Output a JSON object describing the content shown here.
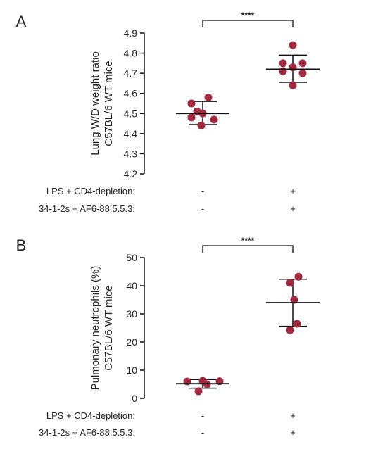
{
  "chart_data": [
    {
      "type": "scatter",
      "panel": "A",
      "ylabel": [
        "Lung W/D weight ratio",
        "C57BL/6 WT mice"
      ],
      "ylim": [
        4.2,
        4.9
      ],
      "yticks": [
        "4.2",
        "4.3",
        "4.4",
        "4.5",
        "4.6",
        "4.7",
        "4.8",
        "4.9"
      ],
      "groups": [
        {
          "condition_markers": [
            "-",
            "-"
          ],
          "points": [
            4.58,
            4.55,
            4.51,
            4.5,
            4.48,
            4.47,
            4.44
          ],
          "mean": 4.5,
          "sd_upper": 4.56,
          "sd_lower": 4.445
        },
        {
          "condition_markers": [
            "+",
            "+"
          ],
          "points": [
            4.84,
            4.75,
            4.75,
            4.73,
            4.71,
            4.7,
            4.64
          ],
          "mean": 4.72,
          "sd_upper": 4.79,
          "sd_lower": 4.655
        }
      ],
      "significance": "****",
      "condition_rows": [
        "LPS + CD4-depletion:",
        "34-1-2s + AF6-88.5.5.3:"
      ],
      "colors": {
        "point": "#a3293f",
        "line": "#111111"
      }
    },
    {
      "type": "scatter",
      "panel": "B",
      "ylabel": [
        "Pulmonary neutrophils (%)",
        "C57BL/6 WT mice"
      ],
      "ylim": [
        0,
        50
      ],
      "yticks": [
        "0",
        "10",
        "20",
        "30",
        "40",
        "50"
      ],
      "groups": [
        {
          "condition_markers": [
            "-",
            "-"
          ],
          "points": [
            6.0,
            6.2,
            6.1,
            5.0,
            2.5
          ],
          "mean": 5.2,
          "sd_upper": 6.7,
          "sd_lower": 3.6
        },
        {
          "condition_markers": [
            "+",
            "+"
          ],
          "points": [
            43.2,
            41.0,
            35.0,
            26.5,
            24.2
          ],
          "mean": 34.0,
          "sd_upper": 42.3,
          "sd_lower": 25.6
        }
      ],
      "significance": "****",
      "condition_rows": [
        "LPS + CD4-depletion:",
        "34-1-2s + AF6-88.5.5.3:"
      ],
      "colors": {
        "point": "#a3293f",
        "line": "#111111"
      }
    }
  ]
}
